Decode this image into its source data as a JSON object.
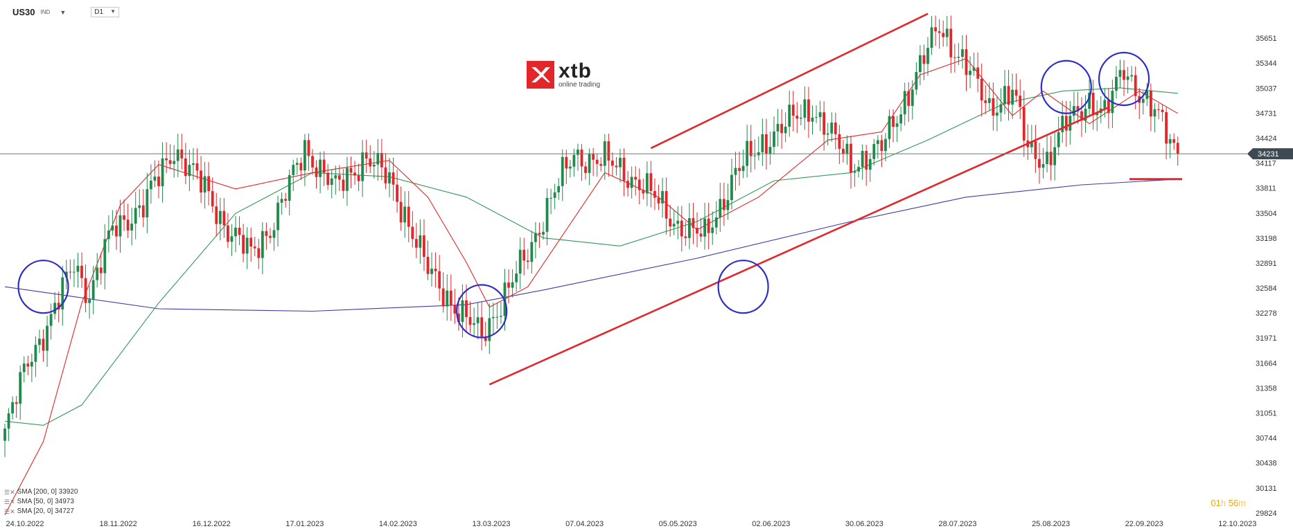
{
  "header": {
    "symbol": "US30",
    "symbol_sub": "IND",
    "timeframe": "D1"
  },
  "logo": {
    "word": "xtb",
    "tagline": "online trading"
  },
  "countdown": {
    "hours": "01",
    "h": "h",
    "minutes": "56",
    "m": "m"
  },
  "legend": [
    {
      "label": "SMA [200, 0] 33920",
      "color": "#3c3ca8"
    },
    {
      "label": "SMA [50, 0] 34973",
      "color": "#2e9a55"
    },
    {
      "label": "SMA [20, 0] 34727",
      "color": "#e3262a"
    }
  ],
  "chart_data": {
    "type": "candlestick",
    "instrument": "US30",
    "timeframe": "D1",
    "x_labels": [
      "24.10.2022",
      "18.11.2022",
      "16.12.2022",
      "17.01.2023",
      "14.02.2023",
      "13.03.2023",
      "07.04.2023",
      "05.05.2023",
      "02.06.2023",
      "30.06.2023",
      "28.07.2023",
      "25.08.2023",
      "22.09.2023",
      "12.10.2023"
    ],
    "y_ticks": [
      35651,
      35344,
      35037,
      34731,
      34424,
      34117,
      33811,
      33504,
      33198,
      32891,
      32584,
      32278,
      31971,
      31664,
      31358,
      31051,
      30744,
      30438,
      30131,
      29824
    ],
    "ylim": [
      29824,
      35958
    ],
    "current_price": 34231,
    "last_close_path": [
      [
        0,
        30800
      ],
      [
        6,
        31700
      ],
      [
        12,
        32200
      ],
      [
        18,
        32900
      ],
      [
        22,
        32500
      ],
      [
        28,
        33300
      ],
      [
        36,
        33600
      ],
      [
        44,
        34300
      ],
      [
        52,
        33800
      ],
      [
        58,
        33300
      ],
      [
        64,
        33000
      ],
      [
        70,
        33400
      ],
      [
        78,
        34300
      ],
      [
        86,
        33800
      ],
      [
        94,
        34200
      ],
      [
        100,
        33900
      ],
      [
        104,
        33500
      ],
      [
        110,
        32800
      ],
      [
        118,
        32300
      ],
      [
        124,
        32000
      ],
      [
        130,
        32500
      ],
      [
        136,
        33000
      ],
      [
        142,
        33700
      ],
      [
        148,
        34200
      ],
      [
        156,
        34150
      ],
      [
        166,
        33850
      ],
      [
        174,
        33400
      ],
      [
        182,
        33200
      ],
      [
        190,
        34000
      ],
      [
        200,
        34500
      ],
      [
        210,
        34800
      ],
      [
        220,
        34100
      ],
      [
        228,
        34300
      ],
      [
        236,
        35100
      ],
      [
        243,
        35800
      ],
      [
        250,
        35300
      ],
      [
        256,
        34800
      ],
      [
        262,
        35000
      ],
      [
        266,
        34300
      ],
      [
        271,
        34150
      ],
      [
        276,
        34600
      ],
      [
        282,
        34900
      ],
      [
        286,
        34700
      ],
      [
        291,
        35300
      ],
      [
        296,
        34900
      ],
      [
        301,
        34600
      ],
      [
        305,
        34231
      ]
    ],
    "sma200_path": [
      [
        0,
        32600
      ],
      [
        40,
        32330
      ],
      [
        80,
        32300
      ],
      [
        120,
        32380
      ],
      [
        140,
        32560
      ],
      [
        180,
        32950
      ],
      [
        220,
        33400
      ],
      [
        250,
        33700
      ],
      [
        280,
        33850
      ],
      [
        305,
        33920
      ]
    ],
    "sma50_path": [
      [
        0,
        30950
      ],
      [
        10,
        30900
      ],
      [
        20,
        31150
      ],
      [
        40,
        32400
      ],
      [
        60,
        33500
      ],
      [
        80,
        34000
      ],
      [
        100,
        33950
      ],
      [
        120,
        33700
      ],
      [
        140,
        33200
      ],
      [
        160,
        33100
      ],
      [
        180,
        33400
      ],
      [
        200,
        33900
      ],
      [
        220,
        34000
      ],
      [
        240,
        34400
      ],
      [
        260,
        34850
      ],
      [
        275,
        35000
      ],
      [
        290,
        35040
      ],
      [
        305,
        34973
      ]
    ],
    "sma20_path": [
      [
        0,
        29800
      ],
      [
        10,
        30700
      ],
      [
        20,
        32400
      ],
      [
        30,
        33600
      ],
      [
        40,
        34100
      ],
      [
        60,
        33800
      ],
      [
        80,
        34000
      ],
      [
        100,
        34150
      ],
      [
        110,
        33700
      ],
      [
        120,
        32900
      ],
      [
        126,
        32350
      ],
      [
        136,
        32600
      ],
      [
        146,
        33300
      ],
      [
        156,
        34000
      ],
      [
        170,
        33700
      ],
      [
        180,
        33300
      ],
      [
        196,
        33700
      ],
      [
        214,
        34400
      ],
      [
        228,
        34500
      ],
      [
        238,
        35200
      ],
      [
        250,
        35400
      ],
      [
        262,
        34700
      ],
      [
        270,
        35000
      ],
      [
        282,
        34600
      ],
      [
        295,
        35000
      ],
      [
        305,
        34727
      ]
    ],
    "channel": {
      "upper": [
        [
          168,
          34300
        ],
        [
          240,
          35950
        ]
      ],
      "lower": [
        [
          126,
          31400
        ],
        [
          287,
          34800
        ]
      ]
    },
    "target_level": 33920,
    "highlight_circles": [
      [
        10,
        32600
      ],
      [
        124,
        32300
      ],
      [
        192,
        32600
      ],
      [
        276,
        35050
      ],
      [
        291,
        35150
      ]
    ]
  }
}
